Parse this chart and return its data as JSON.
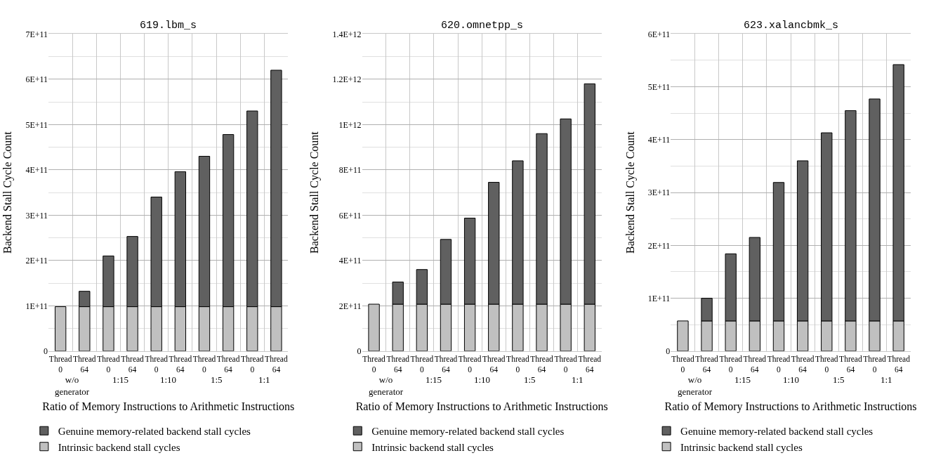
{
  "chart_data": [
    {
      "type": "bar",
      "title": "619.lbm_s",
      "xlabel": "Ratio of Memory Instructions to Arithmetic Instructions",
      "ylabel": "Backend Stall Cycle Count",
      "categories": [
        "Thread 0",
        "Thread 64",
        "Thread 0",
        "Thread 64",
        "Thread 0",
        "Thread 64",
        "Thread 0",
        "Thread 64",
        "Thread 0",
        "Thread 64"
      ],
      "annotations": [
        "w/o generator",
        "1:15",
        "1:10",
        "1:5",
        "1:1"
      ],
      "stacked": true,
      "legend": "bottom left",
      "grid": true,
      "ylim": [
        0,
        700000000000.0
      ],
      "yticks": [
        0,
        {
          "value": 100000000000.0,
          "label": "1E+11"
        },
        {
          "value": 200000000000.0,
          "label": "2E+11"
        },
        {
          "value": 300000000000.0,
          "label": "3E+11"
        },
        {
          "value": 400000000000.0,
          "label": "4E+11"
        },
        {
          "value": 500000000000.0,
          "label": "5E+11"
        },
        {
          "value": 600000000000.0,
          "label": "6E+11"
        },
        {
          "value": 700000000000.0,
          "label": "7E+11"
        }
      ],
      "series": [
        {
          "name": "Intrinsic backend stall cycles",
          "color": "#c0c0c0",
          "values": [
            98000000000.0,
            98000000000.0,
            98000000000.0,
            98000000000.0,
            98000000000.0,
            98000000000.0,
            98000000000.0,
            98000000000.0,
            98000000000.0,
            98000000000.0
          ]
        },
        {
          "name": "Genuine memory-related backend stall cycles",
          "color": "#606060",
          "values": [
            null,
            34000000000.0,
            112000000000.0,
            155000000000.0,
            242000000000.0,
            298000000000.0,
            332000000000.0,
            380000000000.0,
            432000000000.0,
            522000000000.0
          ]
        }
      ]
    },
    {
      "type": "bar",
      "title": "620.omnetpp_s",
      "xlabel": "Ratio of Memory Instructions to Arithmetic Instructions",
      "ylabel": "Backend Stall Cycle Count",
      "categories": [
        "Thread 0",
        "Thread 64",
        "Thread 0",
        "Thread 64",
        "Thread 0",
        "Thread 64",
        "Thread 0",
        "Thread 64",
        "Thread 0",
        "Thread 64"
      ],
      "annotations": [
        "w/o generator",
        "1:15",
        "1:10",
        "1:5",
        "1:1"
      ],
      "stacked": true,
      "legend": "bottom left",
      "grid": true,
      "ylim": [
        0,
        1400000000000.0
      ],
      "yticks": [
        0,
        {
          "value": 200000000000.0,
          "label": "2E+11"
        },
        {
          "value": 400000000000.0,
          "label": "4E+11"
        },
        {
          "value": 600000000000.0,
          "label": "6E+11"
        },
        {
          "value": 800000000000.0,
          "label": "8E+11"
        },
        {
          "value": 1000000000000.0,
          "label": "1E+12"
        },
        {
          "value": 1200000000000.0,
          "label": "1.2E+12"
        },
        {
          "value": 1400000000000.0,
          "label": "1.4E+12"
        }
      ],
      "series": [
        {
          "name": "Intrinsic backend stall cycles",
          "color": "#c0c0c0",
          "values": [
            207000000000.0,
            207000000000.0,
            207000000000.0,
            207000000000.0,
            207000000000.0,
            207000000000.0,
            207000000000.0,
            207000000000.0,
            207000000000.0,
            207000000000.0
          ]
        },
        {
          "name": "Genuine memory-related backend stall cycles",
          "color": "#606060",
          "values": [
            null,
            98000000000.0,
            153000000000.0,
            286000000000.0,
            380000000000.0,
            538000000000.0,
            633000000000.0,
            753000000000.0,
            818000000000.0,
            973000000000.0
          ]
        }
      ]
    },
    {
      "type": "bar",
      "title": "623.xalancbmk_s",
      "xlabel": "Ratio of Memory Instructions to Arithmetic Instructions",
      "ylabel": "Backend Stall Cycle Count",
      "categories": [
        "Thread 0",
        "Thread 64",
        "Thread 0",
        "Thread 64",
        "Thread 0",
        "Thread 64",
        "Thread 0",
        "Thread 64",
        "Thread 0",
        "Thread 64"
      ],
      "annotations": [
        "w/o generator",
        "1:15",
        "1:10",
        "1:5",
        "1:1"
      ],
      "stacked": true,
      "legend": "bottom left",
      "grid": true,
      "ylim": [
        0,
        600000000000.0
      ],
      "yticks": [
        0,
        {
          "value": 100000000000.0,
          "label": "1E+11"
        },
        {
          "value": 200000000000.0,
          "label": "2E+11"
        },
        {
          "value": 300000000000.0,
          "label": "3E+11"
        },
        {
          "value": 400000000000.0,
          "label": "4E+11"
        },
        {
          "value": 500000000000.0,
          "label": "5E+11"
        },
        {
          "value": 600000000000.0,
          "label": "6E+11"
        }
      ],
      "series": [
        {
          "name": "Intrinsic backend stall cycles",
          "color": "#c0c0c0",
          "values": [
            57000000000.0,
            57000000000.0,
            57000000000.0,
            57000000000.0,
            57000000000.0,
            57000000000.0,
            57000000000.0,
            57000000000.0,
            57000000000.0,
            57000000000.0
          ]
        },
        {
          "name": "Genuine memory-related backend stall cycles",
          "color": "#606060",
          "values": [
            null,
            43000000000.0,
            127000000000.0,
            158000000000.0,
            262000000000.0,
            303000000000.0,
            356000000000.0,
            398000000000.0,
            420000000000.0,
            485000000000.0
          ]
        }
      ]
    }
  ]
}
